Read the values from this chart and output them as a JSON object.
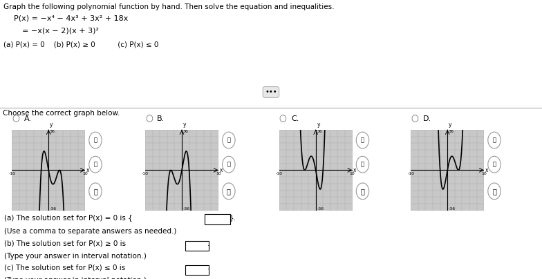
{
  "title_text": "Graph the following polynomial function by hand. Then solve the equation and inequalities.",
  "eq_line1": "P(x) = −x⁴ − 4x³ + 3x² + 18x",
  "eq_line2": "= −x(x − 2)(x + 3)²",
  "parts_text": "(a) P(x) = 0    (b) P(x) ≥ 0         (c) P(x) ≤ 0",
  "choose_text": "Choose the correct graph below.",
  "labels": [
    "A.",
    "B.",
    "C.",
    "D."
  ],
  "graph_xlim": [
    -10,
    10
  ],
  "graph_ylim": [
    -36,
    36
  ],
  "curve_color": "#000000",
  "panel_bg": "#c8c8c8",
  "grid_color": "#aaaaaa",
  "bg_color": "#ffffff"
}
